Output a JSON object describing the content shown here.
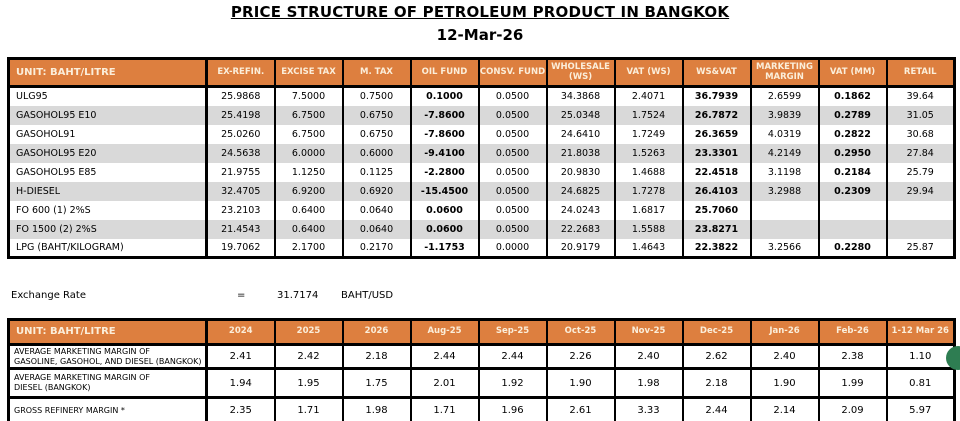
{
  "title": "PRICE STRUCTURE OF PETROLEUM PRODUCT IN BANGKOK",
  "date": "12-Mar-26",
  "colors": {
    "header_bg": "#DD7F3F",
    "header_text": "#FBEEDA",
    "band_gray": "#D9D9D9",
    "green_dot": "#2E7D52"
  },
  "price_table": {
    "unit_header": "UNIT: BAHT/LITRE",
    "columns": [
      "EX-REFIN.",
      "EXCISE TAX",
      "M. TAX",
      "OIL FUND",
      "CONSV. FUND",
      "WHOLESALE\n(WS)",
      "VAT (WS)",
      "WS&VAT",
      "MARKETING\nMARGIN",
      "VAT (MM)",
      "RETAIL"
    ],
    "rows": [
      {
        "label": "ULG95",
        "values": [
          "25.9868",
          "7.5000",
          "0.7500",
          "0.1000",
          "0.0500",
          "34.3868",
          "2.4071",
          "36.7939",
          "2.6599",
          "0.1862",
          "39.64"
        ]
      },
      {
        "label": "GASOHOL95 E10",
        "values": [
          "25.4198",
          "6.7500",
          "0.6750",
          "-7.8600",
          "0.0500",
          "25.0348",
          "1.7524",
          "26.7872",
          "3.9839",
          "0.2789",
          "31.05"
        ]
      },
      {
        "label": "GASOHOL91",
        "values": [
          "25.0260",
          "6.7500",
          "0.6750",
          "-7.8600",
          "0.0500",
          "24.6410",
          "1.7249",
          "26.3659",
          "4.0319",
          "0.2822",
          "30.68"
        ]
      },
      {
        "label": "GASOHOL95 E20",
        "values": [
          "24.5638",
          "6.0000",
          "0.6000",
          "-9.4100",
          "0.0500",
          "21.8038",
          "1.5263",
          "23.3301",
          "4.2149",
          "0.2950",
          "27.84"
        ]
      },
      {
        "label": "GASOHOL95 E85",
        "values": [
          "21.9755",
          "1.1250",
          "0.1125",
          "-2.2800",
          "0.0500",
          "20.9830",
          "1.4688",
          "22.4518",
          "3.1198",
          "0.2184",
          "25.79"
        ]
      },
      {
        "label": "H-DIESEL",
        "values": [
          "32.4705",
          "6.9200",
          "0.6920",
          "-15.4500",
          "0.0500",
          "24.6825",
          "1.7278",
          "26.4103",
          "3.2988",
          "0.2309",
          "29.94"
        ]
      },
      {
        "label": "FO 600 (1) 2%S",
        "values": [
          "23.2103",
          "0.6400",
          "0.0640",
          "0.0600",
          "0.0500",
          "24.0243",
          "1.6817",
          "25.7060",
          "",
          "",
          ""
        ]
      },
      {
        "label": "FO 1500 (2) 2%S",
        "values": [
          "21.4543",
          "0.6400",
          "0.0640",
          "0.0600",
          "0.0500",
          "22.2683",
          "1.5588",
          "23.8271",
          "",
          "",
          ""
        ]
      },
      {
        "label": "LPG (BAHT/KILOGRAM)",
        "values": [
          "19.7062",
          "2.1700",
          "0.2170",
          "-1.1753",
          "0.0000",
          "20.9179",
          "1.4643",
          "22.3822",
          "3.2566",
          "0.2280",
          "25.87"
        ]
      }
    ]
  },
  "exchange_rate": {
    "label": "Exchange Rate",
    "equals": "=",
    "value": "31.7174",
    "unit": "BAHT/USD"
  },
  "margin_table": {
    "unit_header": "UNIT: BAHT/LITRE",
    "columns": [
      "2024",
      "2025",
      "2026",
      "Aug-25",
      "Sep-25",
      "Oct-25",
      "Nov-25",
      "Dec-25",
      "Jan-26",
      "Feb-26",
      "1-12 Mar 26"
    ],
    "rows": [
      {
        "label": "AVERAGE MARKETING MARGIN OF\nGASOLINE, GASOHOL, AND DIESEL (BANGKOK)",
        "values": [
          "2.41",
          "2.42",
          "2.18",
          "2.44",
          "2.44",
          "2.26",
          "2.40",
          "2.62",
          "2.40",
          "2.38",
          "1.10"
        ]
      },
      {
        "label": "AVERAGE MARKETING MARGIN OF\nDIESEL (BANGKOK)",
        "values": [
          "1.94",
          "1.95",
          "1.75",
          "2.01",
          "1.92",
          "1.90",
          "1.98",
          "2.18",
          "1.90",
          "1.99",
          "0.81"
        ]
      },
      {
        "label": "GROSS REFINERY MARGIN *",
        "values": [
          "2.35",
          "1.71",
          "1.98",
          "1.71",
          "1.96",
          "2.61",
          "3.33",
          "2.44",
          "2.14",
          "2.09",
          "5.97"
        ]
      }
    ]
  }
}
